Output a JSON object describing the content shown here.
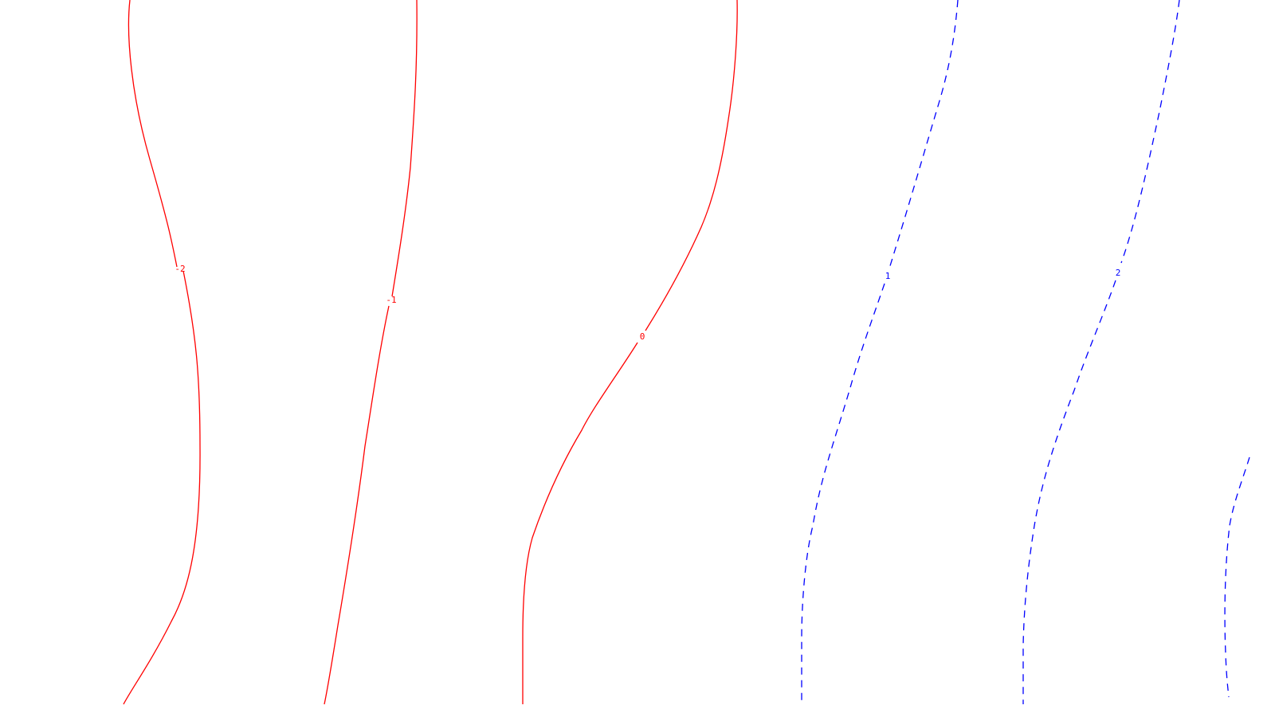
{
  "chart_data": {
    "type": "contour",
    "title": "",
    "xlabel": "",
    "ylabel": "",
    "grid": false,
    "levels": [
      {
        "value": -2,
        "label": "-2",
        "color": "#ff0000",
        "style": "solid"
      },
      {
        "value": -1,
        "label": "-1",
        "color": "#ff0000",
        "style": "solid"
      },
      {
        "value": 0,
        "label": "0",
        "color": "#ff0000",
        "style": "solid"
      },
      {
        "value": 1,
        "label": "1",
        "color": "#0000ff",
        "style": "dashed"
      },
      {
        "value": 2,
        "label": "2",
        "color": "#0000ff",
        "style": "dashed"
      },
      {
        "value": 3,
        "label": "",
        "color": "#0000ff",
        "style": "dashed"
      }
    ]
  }
}
